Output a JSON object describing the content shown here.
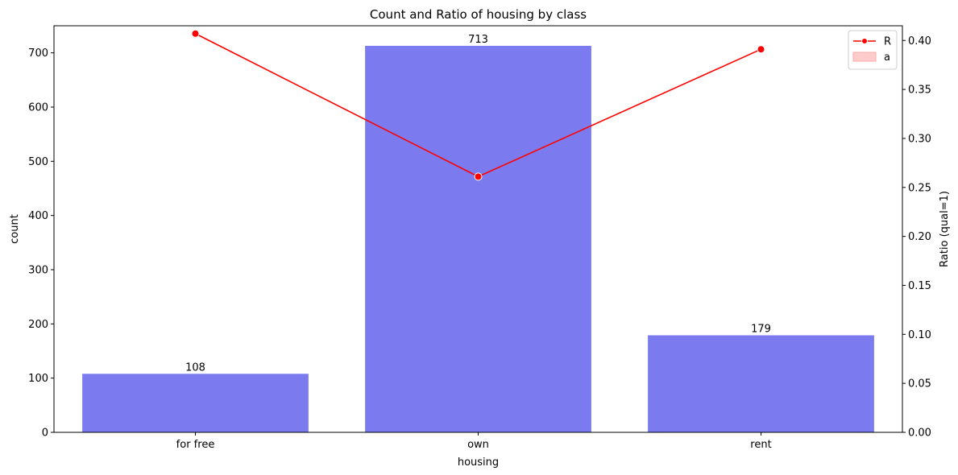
{
  "chart_data": {
    "type": "bar",
    "title": "Count and Ratio of housing by class",
    "xlabel": "housing",
    "ylabel": "count",
    "y2label": "Ratio (qual=1)",
    "categories": [
      "for free",
      "own",
      "rent"
    ],
    "series": [
      {
        "type": "bar",
        "axis": "left",
        "color": "#7B7BEF",
        "values": [
          108,
          713,
          179
        ],
        "data_labels": [
          "108",
          "713",
          "179"
        ]
      },
      {
        "name": "R",
        "type": "line",
        "axis": "right",
        "color": "#FF0000",
        "marker": "circle",
        "values": [
          0.407,
          0.261,
          0.391
        ]
      }
    ],
    "legend_extra": {
      "name": "a",
      "color": "#FFCCCC",
      "type": "area"
    },
    "ylim": [
      0,
      750
    ],
    "y2lim": [
      0,
      0.415
    ],
    "yticks": [
      "0",
      "100",
      "200",
      "300",
      "400",
      "500",
      "600",
      "700"
    ],
    "y2ticks": [
      "0.00",
      "0.05",
      "0.10",
      "0.15",
      "0.20",
      "0.25",
      "0.30",
      "0.35",
      "0.40"
    ],
    "grid": false,
    "legend_position": "top-right"
  }
}
